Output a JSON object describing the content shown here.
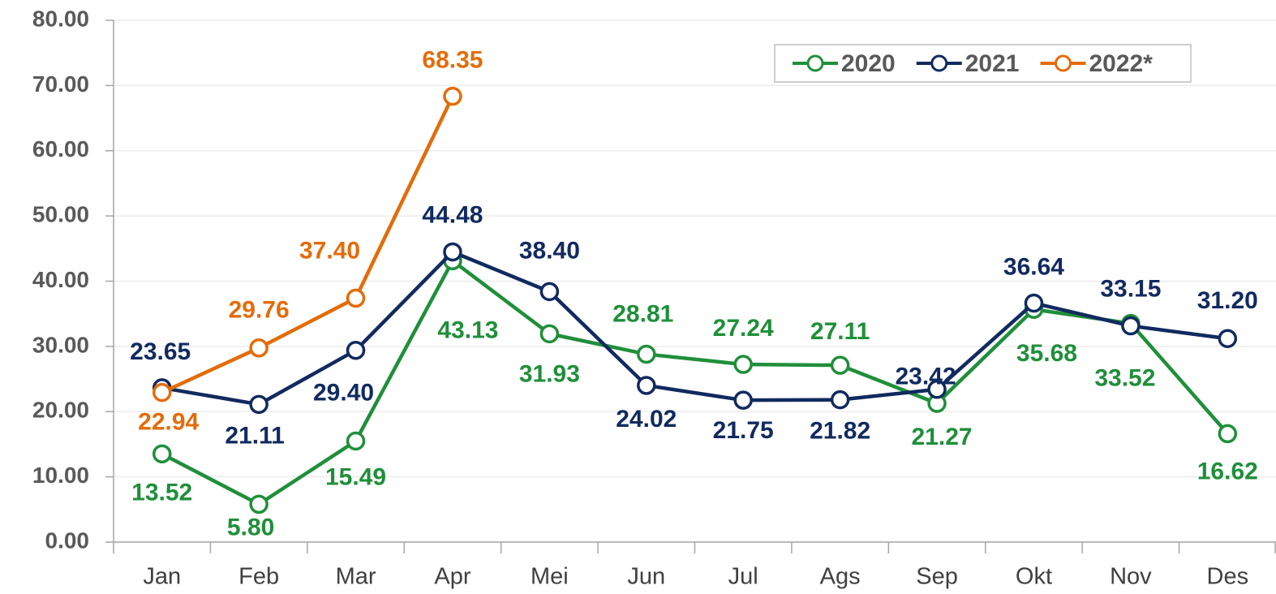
{
  "chart_data": {
    "type": "line",
    "categories": [
      "Jan",
      "Feb",
      "Mar",
      "Apr",
      "Mei",
      "Jun",
      "Jul",
      "Ags",
      "Sep",
      "Okt",
      "Nov",
      "Des"
    ],
    "series": [
      {
        "name": "2020",
        "color": "#1f8f3a",
        "values": [
          13.52,
          5.8,
          15.49,
          43.13,
          31.93,
          28.81,
          27.24,
          27.11,
          21.27,
          35.68,
          33.52,
          16.62
        ],
        "value_labels": [
          "13.52",
          "5.80",
          "15.49",
          "43.13",
          "31.93",
          "28.81",
          "27.24",
          "27.11",
          "21.27",
          "35.68",
          "33.52",
          "16.62"
        ]
      },
      {
        "name": "2021",
        "color": "#112a5f",
        "values": [
          23.65,
          21.11,
          29.4,
          44.48,
          38.4,
          24.02,
          21.75,
          21.82,
          23.42,
          36.64,
          33.15,
          31.2
        ],
        "value_labels": [
          "23.65",
          "21.11",
          "29.40",
          "44.48",
          "38.40",
          "24.02",
          "21.75",
          "21.82",
          "23.42",
          "36.64",
          "33.15",
          "31.20"
        ]
      },
      {
        "name": "2022*",
        "color": "#e36c0a",
        "values": [
          22.94,
          29.76,
          37.4,
          68.35,
          null,
          null,
          null,
          null,
          null,
          null,
          null,
          null
        ],
        "value_labels": [
          "22.94",
          "29.76",
          "37.40",
          "68.35",
          null,
          null,
          null,
          null,
          null,
          null,
          null,
          null
        ]
      }
    ],
    "ylim": [
      0,
      80
    ],
    "yticks": [
      {
        "value": 0,
        "label": "0.00"
      },
      {
        "value": 10,
        "label": "10.00"
      },
      {
        "value": 20,
        "label": "20.00"
      },
      {
        "value": 30,
        "label": "30.00"
      },
      {
        "value": 40,
        "label": "40.00"
      },
      {
        "value": 50,
        "label": "50.00"
      },
      {
        "value": 60,
        "label": "60.00"
      },
      {
        "value": 70,
        "label": "70.00"
      },
      {
        "value": 80,
        "label": "80.00"
      }
    ],
    "grid": true,
    "legend": "top-right"
  }
}
